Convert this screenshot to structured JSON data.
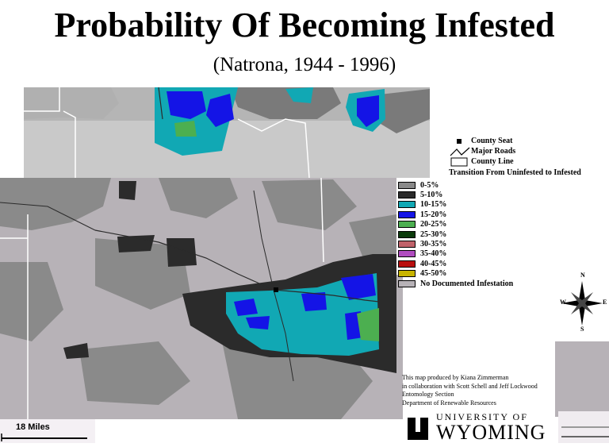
{
  "title": "Probability Of Becoming Infested",
  "subtitle": "(Natrona, 1944 - 1996)",
  "legend": {
    "symbols": [
      {
        "label": "County Seat",
        "icon": "county-seat-icon"
      },
      {
        "label": "Major Roads",
        "icon": "road-line-icon"
      },
      {
        "label": "County Line",
        "icon": "county-line-icon"
      }
    ],
    "transition_title": "Transition From Uninfested to Infested",
    "classes": [
      {
        "label": "0-5%",
        "color": "#8a8a8a"
      },
      {
        "label": "5-10%",
        "color": "#2b2b2b"
      },
      {
        "label": "10-15%",
        "color": "#11a8b4"
      },
      {
        "label": "15-20%",
        "color": "#1414e6"
      },
      {
        "label": "20-25%",
        "color": "#4caf50"
      },
      {
        "label": "25-30%",
        "color": "#0b3b0b"
      },
      {
        "label": "30-35%",
        "color": "#c0626a"
      },
      {
        "label": "35-40%",
        "color": "#b04cbf"
      },
      {
        "label": "40-45%",
        "color": "#b80f0f"
      },
      {
        "label": "45-50%",
        "color": "#c8b400"
      },
      {
        "label": "No Documented Infestation",
        "color": "#b7b2b7"
      }
    ]
  },
  "credits": [
    "This map produced by Kiana Zimmerman",
    "in collaboration with Scott Schell and Jeff Lockwood",
    "Entomology Section",
    "Department of Renewable Resources"
  ],
  "scale": {
    "label": "18 Miles"
  },
  "compass": {
    "n": "N",
    "s": "S",
    "e": "E",
    "w": "W"
  },
  "logo": {
    "line1": "UNIVERSITY OF",
    "line2": "WYOMING",
    "mark": "U"
  }
}
